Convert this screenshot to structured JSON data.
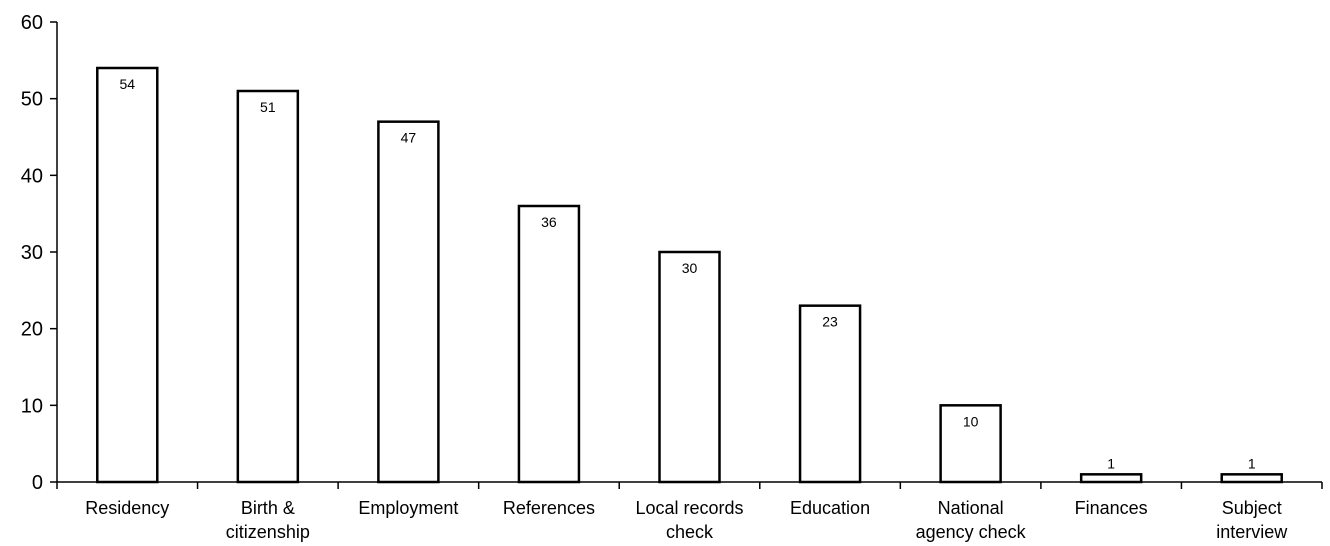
{
  "chart_data": {
    "type": "bar",
    "categories": [
      [
        "Residency"
      ],
      [
        "Birth &",
        "citizenship"
      ],
      [
        "Employment"
      ],
      [
        "References"
      ],
      [
        "Local records",
        "check"
      ],
      [
        "Education"
      ],
      [
        "National",
        "agency check"
      ],
      [
        "Finances"
      ],
      [
        "Subject",
        "interview"
      ]
    ],
    "values": [
      54,
      51,
      47,
      36,
      30,
      23,
      10,
      1,
      1
    ],
    "data_labels": [
      "54",
      "51",
      "47",
      "36",
      "30",
      "23",
      "10",
      "1",
      "1"
    ],
    "ylim": [
      0,
      60
    ],
    "yticks": [
      0,
      10,
      20,
      30,
      40,
      50,
      60
    ],
    "grid": false,
    "colors": {
      "bar_fill": "#ffffff",
      "bar_stroke": "#000000"
    }
  }
}
